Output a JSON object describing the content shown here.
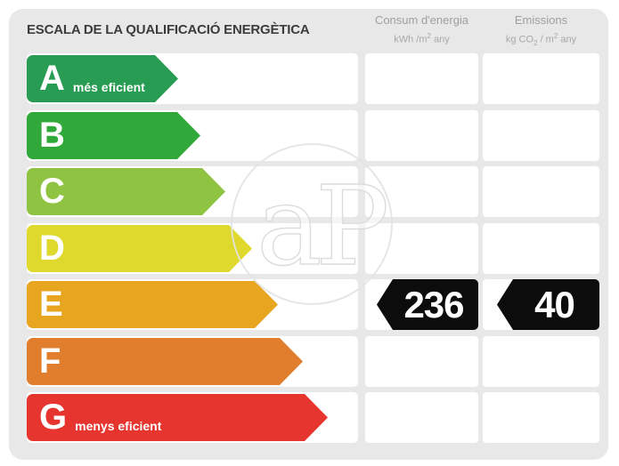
{
  "title": "ESCALA DE LA QUALIFICACIÓ ENERGÈTICA",
  "header": {
    "energy": {
      "title": "Consum d'energia",
      "unit": {
        "p1": "kWh /m",
        "sup": "2",
        "tail": " any"
      }
    },
    "emissions": {
      "title": "Emissions",
      "unit": {
        "p1": "kg CO",
        "sub": "2",
        "p2": " / m",
        "sup": "2",
        "tail": " any"
      }
    }
  },
  "scale": {
    "current_rating": "E",
    "ratings": [
      {
        "letter": "A",
        "label": "més eficient",
        "color": "#289c52",
        "arrow_width": 170
      },
      {
        "letter": "B",
        "label": "",
        "color": "#31a83a",
        "arrow_width": 195
      },
      {
        "letter": "C",
        "label": "",
        "color": "#8fc342",
        "arrow_width": 223
      },
      {
        "letter": "D",
        "label": "",
        "color": "#e0d92d",
        "arrow_width": 253
      },
      {
        "letter": "E",
        "label": "",
        "color": "#e8a51f",
        "arrow_width": 282
      },
      {
        "letter": "F",
        "label": "",
        "color": "#e17e2d",
        "arrow_width": 310
      },
      {
        "letter": "G",
        "label": "menys eficient",
        "color": "#e5352e",
        "arrow_width": 338
      }
    ]
  },
  "values": {
    "energy": "236",
    "emissions": "40",
    "arrow_color": "#0c0c0c",
    "text_color": "#ffffff"
  },
  "watermark": {
    "text": "aP",
    "stroke_color": "#dcdcdc"
  },
  "chart_data": {
    "type": "bar",
    "title": "ESCALA DE LA QUALIFICACIÓ ENERGÈTICA",
    "categories": [
      "A",
      "B",
      "C",
      "D",
      "E",
      "F",
      "G"
    ],
    "category_colors": [
      "#289c52",
      "#31a83a",
      "#8fc342",
      "#e0d92d",
      "#e8a51f",
      "#e17e2d",
      "#e5352e"
    ],
    "bar_lengths_relative": [
      0.46,
      0.52,
      0.6,
      0.68,
      0.76,
      0.83,
      0.91
    ],
    "current_rating": "E",
    "series": [
      {
        "name": "Consum d'energia (kWh/m2 any)",
        "rating": "E",
        "value": 236
      },
      {
        "name": "Emissions (kg CO2/m2 any)",
        "rating": "E",
        "value": 40
      }
    ],
    "annotations": [
      "A = més eficient",
      "G = menys eficient"
    ],
    "legend_position": "top",
    "grid": false
  }
}
